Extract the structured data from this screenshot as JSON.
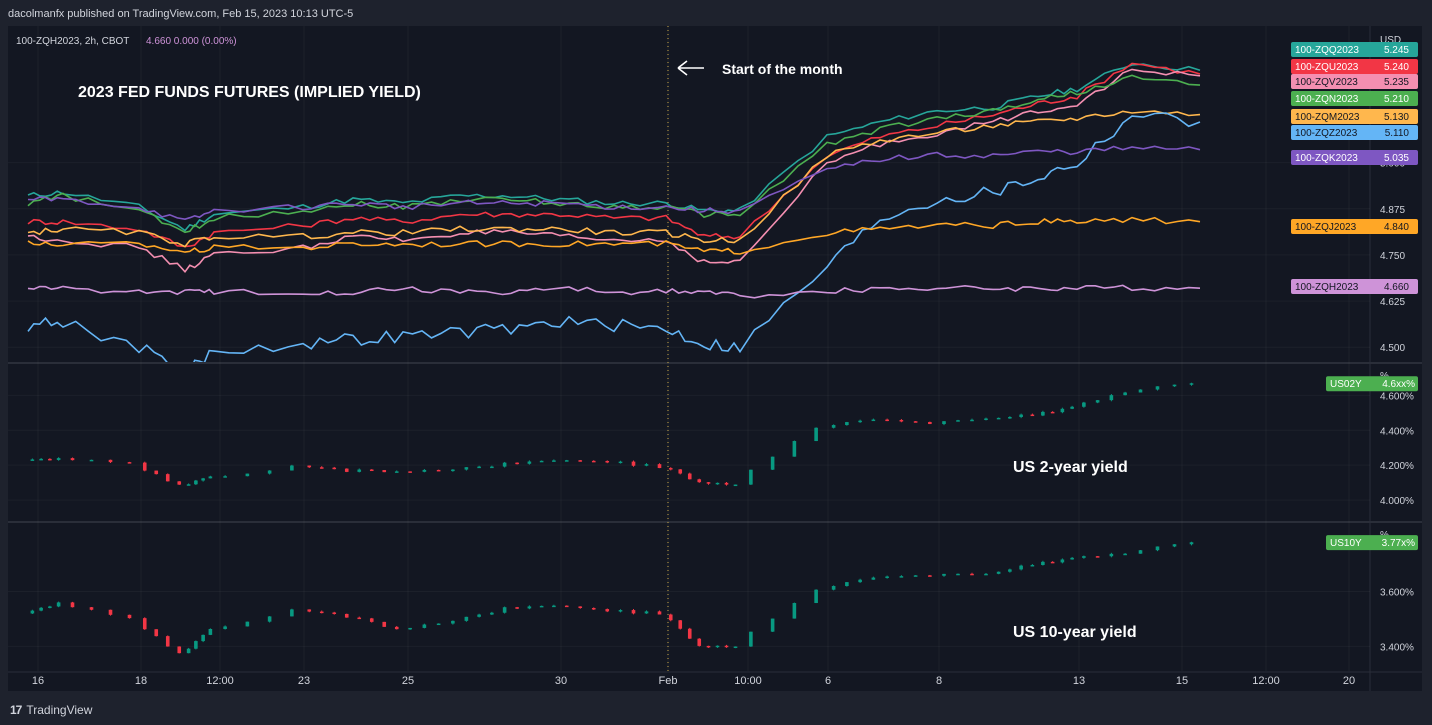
{
  "header": {
    "published_text": "dacolmanfx published on TradingView.com, Feb 15, 2023 10:13 UTC-5",
    "legend_symbol": "100-ZQH2023, 2h, CBOT",
    "legend_values": "4.660  0.000 (0.00%)"
  },
  "footer": {
    "brand_mark": "17",
    "brand_label": "TradingView"
  },
  "chart_data": [
    {
      "type": "line",
      "title": "2023 FED FUNDS FUTURES (IMPLIED YIELD)",
      "annotation": "Start of the month",
      "y_unit": "USD",
      "ylim": [
        4.46,
        5.37
      ],
      "y_ticks": [
        "4.500",
        "4.625",
        "4.750",
        "4.875",
        "5.000"
      ],
      "x_ticks": [
        "16",
        "18",
        "12:00",
        "23",
        "25",
        "30",
        "Feb",
        "10:00",
        "6",
        "8",
        "13",
        "15",
        "12:00",
        "20"
      ],
      "x_range": [
        "Jan 16",
        "Feb 20"
      ],
      "x": [
        "Jan 16",
        "Jan 17",
        "Jan 18",
        "Jan 19",
        "Jan 20",
        "Jan 23",
        "Jan 24",
        "Jan 25",
        "Jan 26",
        "Jan 27",
        "Jan 30",
        "Jan 31",
        "Feb 1",
        "Feb 2",
        "Feb 3",
        "Feb 6",
        "Feb 7",
        "Feb 8",
        "Feb 9",
        "Feb 10",
        "Feb 13",
        "Feb 14",
        "Feb 15"
      ],
      "series": [
        {
          "name": "100-ZQQ2023",
          "color": "#26a69a",
          "last": "5.245",
          "values": [
            4.91,
            4.92,
            4.88,
            4.82,
            4.86,
            4.88,
            4.9,
            4.89,
            4.91,
            4.91,
            4.9,
            4.89,
            4.89,
            4.87,
            4.87,
            5.07,
            5.11,
            5.14,
            5.15,
            5.18,
            5.2,
            5.27,
            5.25
          ]
        },
        {
          "name": "100-ZQU2023",
          "color": "#f23645",
          "last": "5.240",
          "values": [
            4.84,
            4.84,
            4.82,
            4.77,
            4.81,
            4.83,
            4.85,
            4.84,
            4.86,
            4.86,
            4.86,
            4.85,
            4.85,
            4.8,
            4.8,
            5.02,
            5.07,
            5.1,
            5.13,
            5.16,
            5.18,
            5.27,
            5.24
          ]
        },
        {
          "name": "100-ZQV2023",
          "color": "#f48fb1",
          "last": "5.235",
          "values": [
            4.8,
            4.79,
            4.77,
            4.71,
            4.75,
            4.77,
            4.8,
            4.79,
            4.81,
            4.81,
            4.8,
            4.79,
            4.79,
            4.73,
            4.73,
            5.0,
            5.05,
            5.08,
            5.11,
            5.14,
            5.16,
            5.25,
            5.235
          ]
        },
        {
          "name": "100-ZQN2023",
          "color": "#4caf50",
          "last": "5.210",
          "values": [
            4.89,
            4.91,
            4.87,
            4.81,
            4.85,
            4.87,
            4.89,
            4.88,
            4.9,
            4.9,
            4.89,
            4.88,
            4.88,
            4.86,
            4.86,
            5.05,
            5.09,
            5.12,
            5.14,
            5.17,
            5.19,
            5.23,
            5.21
          ]
        },
        {
          "name": "100-ZQM2023",
          "color": "#ffb74d",
          "last": "5.130",
          "values": [
            4.81,
            4.82,
            4.81,
            4.78,
            4.8,
            4.8,
            4.81,
            4.81,
            4.82,
            4.82,
            4.82,
            4.81,
            4.81,
            4.79,
            4.79,
            5.02,
            5.06,
            5.08,
            5.1,
            5.11,
            5.12,
            5.14,
            5.13
          ]
        },
        {
          "name": "100-ZQZ2023",
          "color": "#64b5f6",
          "last": "5.110",
          "values": [
            4.56,
            4.57,
            4.5,
            4.43,
            4.49,
            4.51,
            4.52,
            4.53,
            4.54,
            4.55,
            4.57,
            4.56,
            4.55,
            4.51,
            4.5,
            4.72,
            4.85,
            4.9,
            4.92,
            4.96,
            5.0,
            5.13,
            5.11
          ]
        },
        {
          "name": "100-ZQK2023",
          "color": "#7e57c2",
          "last": "5.035",
          "values": [
            4.9,
            4.9,
            4.88,
            4.84,
            4.87,
            4.88,
            4.89,
            4.88,
            4.89,
            4.89,
            4.89,
            4.88,
            4.88,
            4.87,
            4.87,
            4.98,
            5.01,
            5.02,
            5.02,
            5.03,
            5.03,
            5.04,
            5.035
          ]
        },
        {
          "name": "100-ZQJ2023",
          "color": "#ffa726",
          "last": "4.840",
          "values": [
            4.78,
            4.78,
            4.78,
            4.76,
            4.77,
            4.77,
            4.78,
            4.78,
            4.78,
            4.78,
            4.78,
            4.78,
            4.78,
            4.76,
            4.76,
            4.81,
            4.82,
            4.83,
            4.83,
            4.84,
            4.84,
            4.845,
            4.84
          ]
        },
        {
          "name": "100-ZQH2023",
          "color": "#ce93d8",
          "last": "4.660",
          "values": [
            4.66,
            4.66,
            4.65,
            4.65,
            4.65,
            4.65,
            4.65,
            4.66,
            4.65,
            4.65,
            4.66,
            4.65,
            4.65,
            4.65,
            4.64,
            4.65,
            4.66,
            4.66,
            4.66,
            4.66,
            4.66,
            4.66,
            4.66
          ]
        }
      ]
    },
    {
      "type": "candlestick",
      "title": "US 2-year yield",
      "y_unit": "%",
      "badge": "US02Y",
      "last": "4.6xx%",
      "ylim": [
        3.88,
        4.78
      ],
      "y_ticks": [
        "4.000%",
        "4.200%",
        "4.400%",
        "4.600%"
      ],
      "x": [
        "Jan 16",
        "Jan 17",
        "Jan 18",
        "Jan 19",
        "Jan 20",
        "Jan 23",
        "Jan 24",
        "Jan 25",
        "Jan 26",
        "Jan 27",
        "Jan 30",
        "Jan 31",
        "Feb 1",
        "Feb 2",
        "Feb 3",
        "Feb 6",
        "Feb 7",
        "Feb 8",
        "Feb 9",
        "Feb 10",
        "Feb 13",
        "Feb 14",
        "Feb 15"
      ],
      "values": [
        4.23,
        4.24,
        4.21,
        4.08,
        4.13,
        4.19,
        4.17,
        4.16,
        4.17,
        4.21,
        4.23,
        4.22,
        4.19,
        4.1,
        4.09,
        4.42,
        4.46,
        4.44,
        4.46,
        4.49,
        4.53,
        4.62,
        4.67
      ]
    },
    {
      "type": "candlestick",
      "title": "US 10-year yield",
      "y_unit": "%",
      "badge": "US10Y",
      "last": "3.77x%",
      "ylim": [
        3.31,
        3.85
      ],
      "y_ticks": [
        "3.400%",
        "3.600%"
      ],
      "x": [
        "Jan 16",
        "Jan 17",
        "Jan 18",
        "Jan 19",
        "Jan 20",
        "Jan 23",
        "Jan 24",
        "Jan 25",
        "Jan 26",
        "Jan 27",
        "Jan 30",
        "Jan 31",
        "Feb 1",
        "Feb 2",
        "Feb 3",
        "Feb 6",
        "Feb 7",
        "Feb 8",
        "Feb 9",
        "Feb 10",
        "Feb 13",
        "Feb 14",
        "Feb 15"
      ],
      "values": [
        3.52,
        3.56,
        3.5,
        3.37,
        3.46,
        3.53,
        3.51,
        3.46,
        3.49,
        3.54,
        3.55,
        3.53,
        3.52,
        3.4,
        3.4,
        3.61,
        3.65,
        3.66,
        3.66,
        3.7,
        3.72,
        3.74,
        3.78
      ]
    }
  ]
}
